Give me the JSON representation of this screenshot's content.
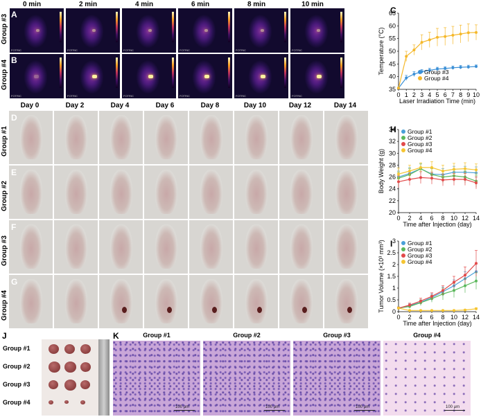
{
  "panels": {
    "A": "A",
    "B": "B",
    "C": "C",
    "D": "D",
    "E": "E",
    "F": "F",
    "G": "G",
    "H": "H",
    "I": "I",
    "J": "J",
    "K": "K"
  },
  "thermal_times": [
    "0 min",
    "2 min",
    "4 min",
    "6 min",
    "8 min",
    "10 min"
  ],
  "thermal_groups": [
    "Group #3",
    "Group #4"
  ],
  "thermal_brand": "FOTRIC",
  "photo_days": [
    "Day 0",
    "Day 2",
    "Day 4",
    "Day 6",
    "Day 8",
    "Day 10",
    "Day 12",
    "Day 14"
  ],
  "photo_groups": [
    "Group #1",
    "Group #2",
    "Group #3",
    "Group #4"
  ],
  "tumor_groups": [
    "Group #1",
    "Group #2",
    "Group #3",
    "Group #4"
  ],
  "histo_groups": [
    "Group #1",
    "Group #2",
    "Group #3",
    "Group #4"
  ],
  "scale_bar": "100 μm",
  "chart_data": [
    {
      "id": "C",
      "type": "line",
      "xlabel": "Laser Irradiation Time (min)",
      "ylabel": "Temperature (°C)",
      "x": [
        0,
        1,
        2,
        3,
        4,
        5,
        6,
        7,
        8,
        9,
        10
      ],
      "xticks": [
        "0",
        "1",
        "2",
        "3",
        "4",
        "5",
        "6",
        "7",
        "8",
        "9",
        "10"
      ],
      "yticks": [
        "35",
        "40",
        "45",
        "50",
        "55",
        "60",
        "65"
      ],
      "ylim": [
        35,
        65
      ],
      "legend_position": "bottom-right",
      "series": [
        {
          "name": "Group #3",
          "color": "#3a8fd6",
          "values": [
            35.5,
            39.5,
            41.0,
            42.0,
            42.5,
            43.0,
            43.2,
            43.5,
            43.7,
            43.8,
            44.0
          ],
          "err": [
            0.3,
            1.0,
            1.0,
            0.8,
            0.8,
            0.7,
            0.7,
            0.7,
            0.7,
            0.7,
            0.6
          ]
        },
        {
          "name": "Group #4",
          "color": "#f5b82a",
          "values": [
            35.5,
            48.0,
            50.5,
            53.5,
            54.5,
            55.5,
            55.8,
            56.3,
            56.8,
            57.3,
            57.4
          ],
          "err": [
            0.3,
            2.0,
            2.0,
            3.0,
            3.0,
            3.5,
            3.5,
            3.5,
            3.5,
            3.5,
            3.0
          ]
        }
      ]
    },
    {
      "id": "H",
      "type": "line",
      "xlabel": "Time after Injection (day)",
      "ylabel": "Body Weight (g)",
      "x": [
        0,
        2,
        4,
        6,
        8,
        10,
        12,
        14
      ],
      "xticks": [
        "0",
        "2",
        "4",
        "6",
        "8",
        "10",
        "12",
        "14"
      ],
      "yticks": [
        "20",
        "22",
        "24",
        "26",
        "28",
        "30",
        "32",
        "34"
      ],
      "ylim": [
        20,
        34
      ],
      "legend_position": "top-left",
      "series": [
        {
          "name": "Group #1",
          "color": "#4aa0d8",
          "values": [
            26.0,
            26.6,
            27.4,
            26.5,
            26.4,
            26.8,
            26.8,
            26.7
          ],
          "err": [
            1.0,
            1.0,
            0.8,
            1.0,
            1.0,
            1.0,
            1.0,
            1.0
          ]
        },
        {
          "name": "Group #2",
          "color": "#5cb85c",
          "values": [
            25.8,
            26.4,
            27.4,
            26.4,
            26.0,
            26.2,
            26.0,
            25.3
          ],
          "err": [
            1.0,
            1.0,
            0.8,
            1.0,
            1.0,
            1.0,
            1.0,
            1.0
          ]
        },
        {
          "name": "Group #3",
          "color": "#e24a4a",
          "values": [
            25.2,
            25.6,
            25.9,
            25.8,
            25.5,
            25.6,
            25.6,
            25.0
          ],
          "err": [
            1.0,
            1.0,
            1.0,
            1.0,
            1.0,
            1.0,
            1.0,
            1.0
          ]
        },
        {
          "name": "Group #4",
          "color": "#f5c533",
          "values": [
            26.5,
            27.0,
            27.6,
            27.6,
            27.0,
            27.3,
            27.4,
            27.2
          ],
          "err": [
            1.0,
            1.0,
            0.8,
            1.0,
            1.0,
            1.0,
            1.0,
            1.0
          ]
        }
      ]
    },
    {
      "id": "I",
      "type": "line",
      "xlabel": "Time after Injection (day)",
      "ylabel": "Tumor Volume (×10³ mm³)",
      "x": [
        0,
        2,
        4,
        6,
        8,
        10,
        12,
        14
      ],
      "xticks": [
        "0",
        "2",
        "4",
        "6",
        "8",
        "10",
        "12",
        "14"
      ],
      "yticks": [
        "0",
        "0.5",
        "1",
        "1.5",
        "2",
        "2.5",
        "3"
      ],
      "ylim": [
        0,
        3
      ],
      "legend_position": "top-left",
      "series": [
        {
          "name": "Group #1",
          "color": "#4aa0d8",
          "values": [
            0.15,
            0.25,
            0.4,
            0.6,
            0.85,
            1.1,
            1.4,
            1.7
          ],
          "err": [
            0.05,
            0.08,
            0.1,
            0.15,
            0.2,
            0.25,
            0.3,
            0.35
          ]
        },
        {
          "name": "Group #2",
          "color": "#5cb85c",
          "values": [
            0.15,
            0.22,
            0.38,
            0.55,
            0.75,
            0.9,
            1.1,
            1.3
          ],
          "err": [
            0.05,
            0.08,
            0.12,
            0.15,
            0.25,
            0.3,
            0.3,
            0.35
          ]
        },
        {
          "name": "Group #3",
          "color": "#e24a4a",
          "values": [
            0.15,
            0.28,
            0.45,
            0.65,
            0.9,
            1.25,
            1.55,
            2.05
          ],
          "err": [
            0.05,
            0.08,
            0.12,
            0.15,
            0.2,
            0.25,
            0.35,
            0.55
          ]
        },
        {
          "name": "Group #4",
          "color": "#f5c533",
          "values": [
            0.15,
            0.05,
            0.05,
            0.05,
            0.05,
            0.05,
            0.07,
            0.12
          ],
          "err": [
            0.03,
            0.02,
            0.02,
            0.02,
            0.02,
            0.02,
            0.03,
            0.05
          ]
        }
      ]
    }
  ]
}
